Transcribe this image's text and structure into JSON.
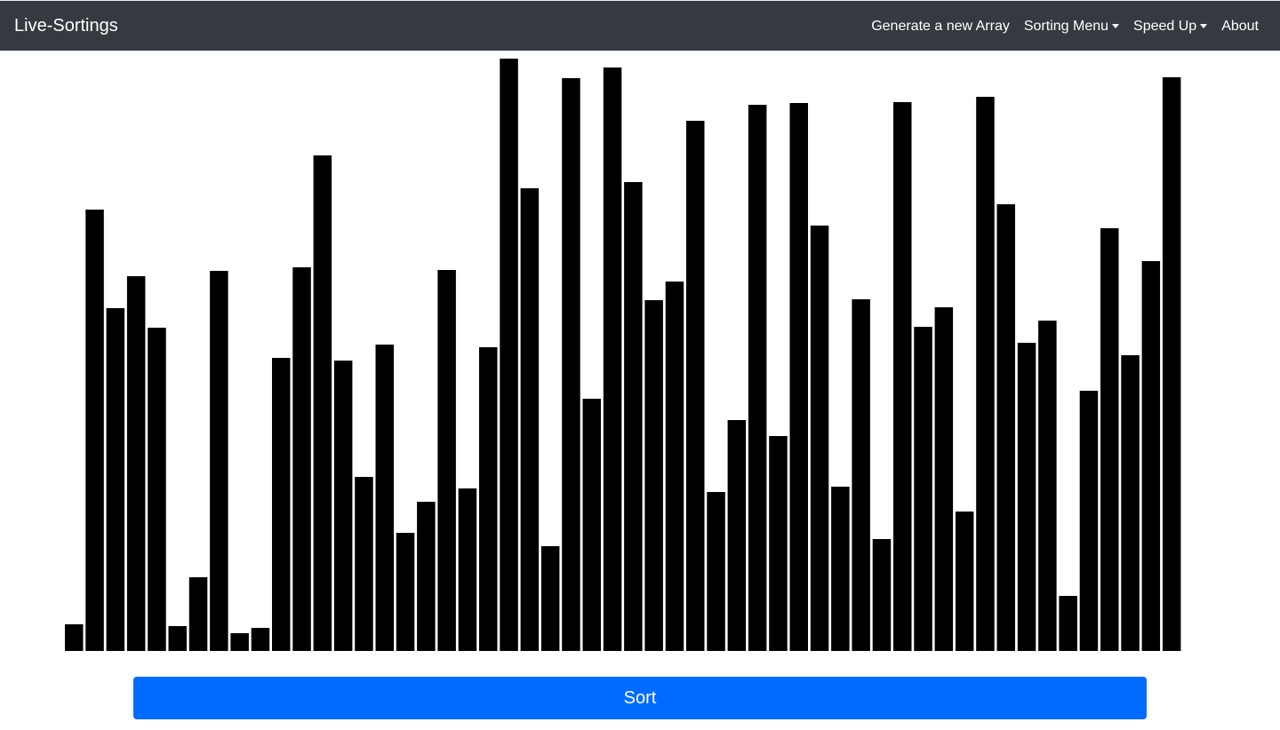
{
  "navbar": {
    "brand": "Live-Sortings",
    "links": {
      "generate": "Generate a new Array",
      "sorting_menu": "Sorting Menu",
      "speed_up": "Speed Up",
      "about": "About"
    },
    "background": "#343a40"
  },
  "sort_button": {
    "label": "Sort",
    "color": "#006bff"
  },
  "chart_data": {
    "type": "bar",
    "bar_color": "#000000",
    "ylim": [
      0,
      667
    ],
    "values": [
      30,
      497,
      386,
      422,
      364,
      28,
      83,
      428,
      20,
      26,
      330,
      432,
      558,
      327,
      196,
      345,
      133,
      168,
      429,
      183,
      342,
      667,
      521,
      118,
      645,
      284,
      657,
      528,
      395,
      416,
      597,
      179,
      260,
      615,
      242,
      617,
      479,
      185,
      396,
      126,
      618,
      365,
      387,
      157,
      624,
      503,
      347,
      372,
      62,
      293,
      476,
      333,
      439,
      646
    ]
  }
}
